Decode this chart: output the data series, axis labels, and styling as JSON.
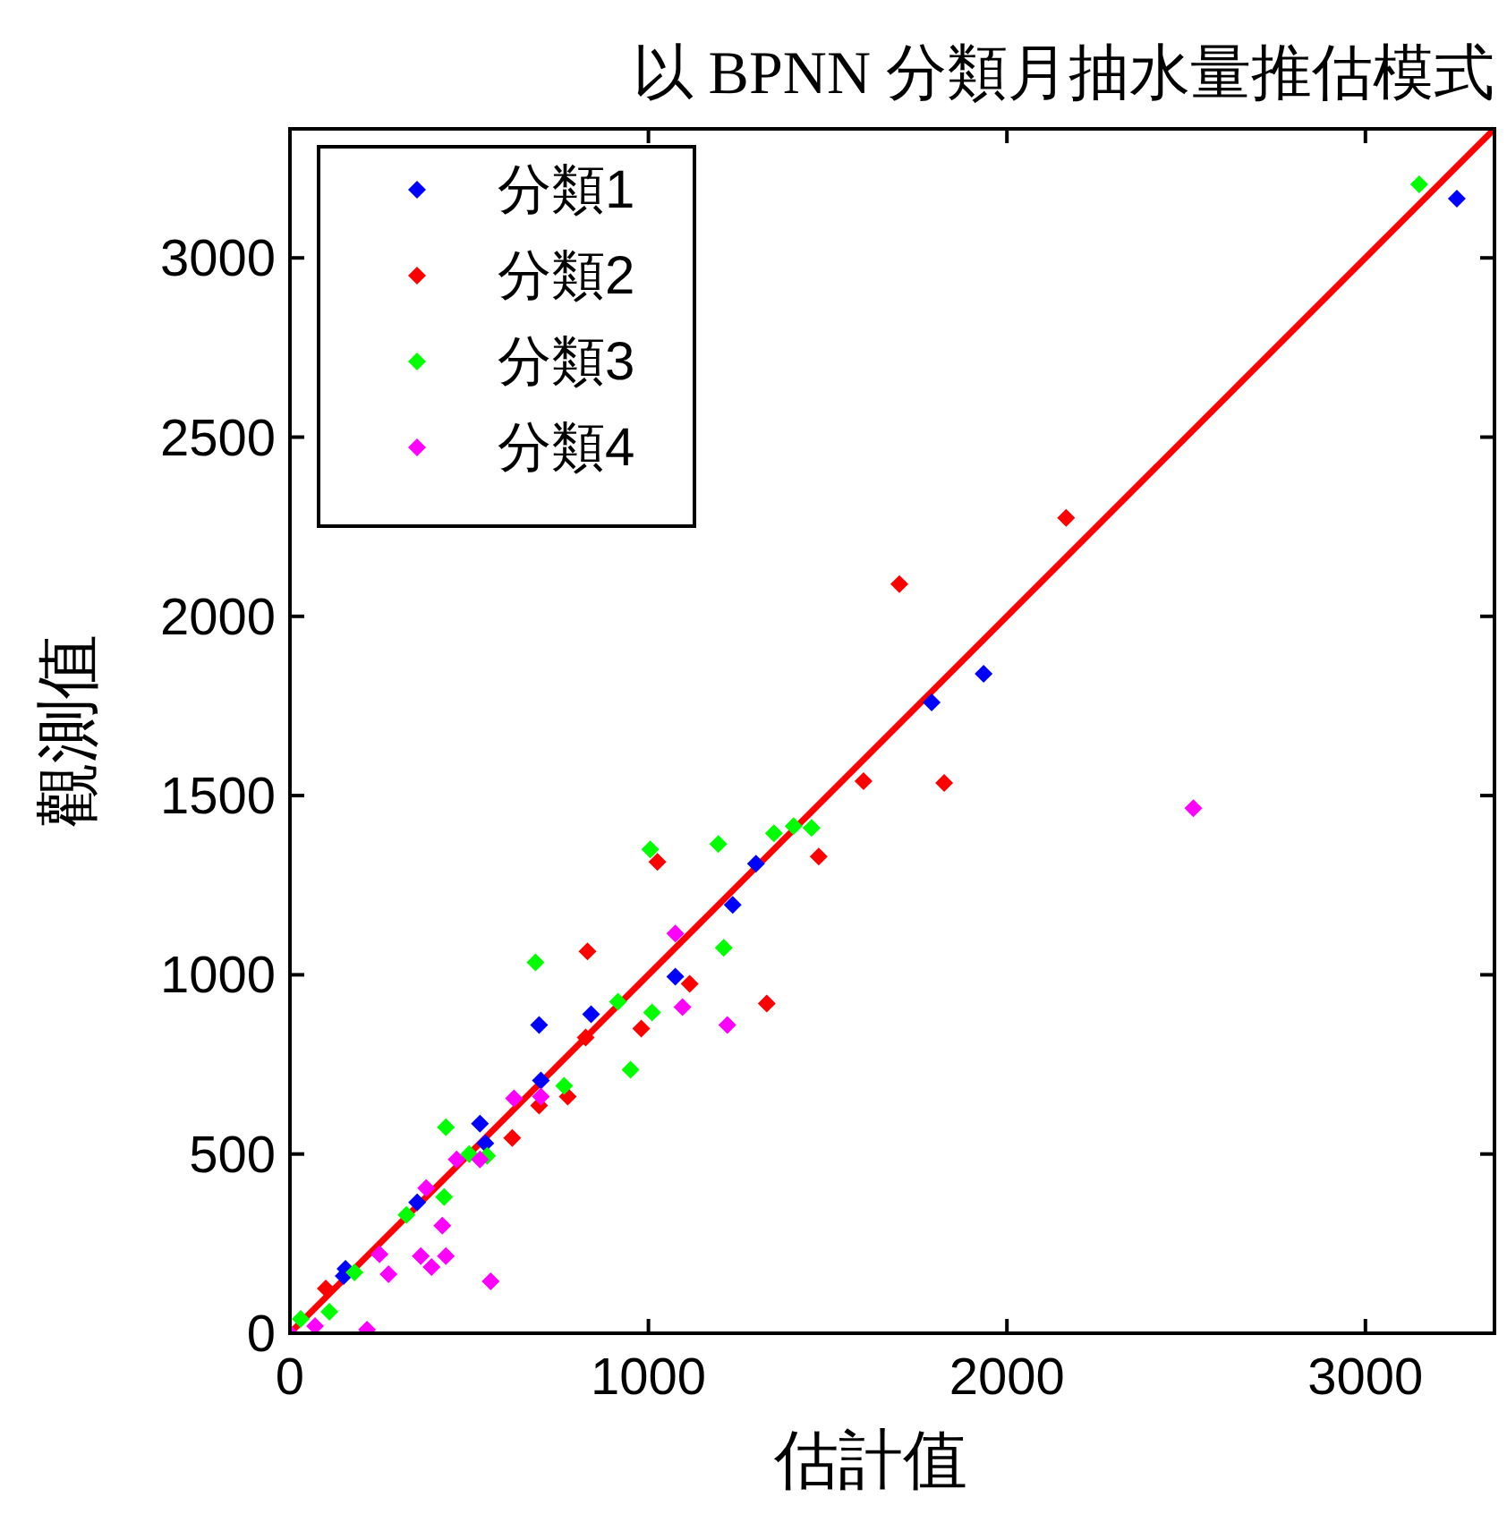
{
  "chart_data": {
    "type": "scatter",
    "title": "以 BPNN 分類月抽水量推估模式",
    "xlabel": "估計值",
    "ylabel": "觀測值",
    "xlim": [
      0,
      3360
    ],
    "ylim": [
      0,
      3360
    ],
    "xticks": [
      0,
      1000,
      2000,
      3000
    ],
    "yticks": [
      0,
      500,
      1000,
      1500,
      2000,
      2500,
      3000
    ],
    "grid": false,
    "legend": "top left",
    "marker": "diamond",
    "series": [
      {
        "name": "分類1",
        "color": "#0000ff",
        "x": [
          3255,
          1935,
          1790,
          1300,
          1235,
          1075,
          840,
          695,
          700,
          530,
          545,
          355,
          155,
          150
        ],
        "values": [
          3165,
          1840,
          1760,
          1310,
          1195,
          995,
          890,
          860,
          705,
          585,
          530,
          365,
          180,
          160
        ]
      },
      {
        "name": "分類2",
        "color": "#ff0000",
        "x": [
          2165,
          1700,
          1600,
          1825,
          1475,
          1025,
          830,
          1115,
          1330,
          980,
          825,
          775,
          695,
          620,
          100
        ],
        "values": [
          2275,
          2090,
          1540,
          1535,
          1330,
          1315,
          1065,
          975,
          920,
          850,
          825,
          660,
          635,
          545,
          125
        ]
      },
      {
        "name": "分類3",
        "color": "#00ff00",
        "x": [
          3150,
          1005,
          1195,
          1350,
          1405,
          1455,
          1210,
          685,
          1010,
          915,
          950,
          765,
          435,
          550,
          500,
          430,
          325,
          180,
          110,
          30
        ],
        "values": [
          3205,
          1350,
          1365,
          1395,
          1415,
          1410,
          1075,
          1035,
          895,
          925,
          735,
          690,
          575,
          495,
          500,
          380,
          330,
          170,
          60,
          40
        ]
      },
      {
        "name": "分類4",
        "color": "#ff00ff",
        "x": [
          2520,
          1075,
          1095,
          1220,
          625,
          700,
          465,
          530,
          380,
          425,
          365,
          435,
          395,
          275,
          560,
          250,
          215,
          70,
          0
        ],
        "values": [
          1465,
          1115,
          910,
          860,
          655,
          660,
          485,
          485,
          405,
          300,
          215,
          215,
          185,
          165,
          145,
          220,
          10,
          20,
          0
        ]
      },
      {
        "type": "line",
        "color": "#ff0000",
        "x": [
          0,
          3360
        ],
        "values": [
          0,
          3360
        ],
        "marker": "none"
      }
    ]
  }
}
